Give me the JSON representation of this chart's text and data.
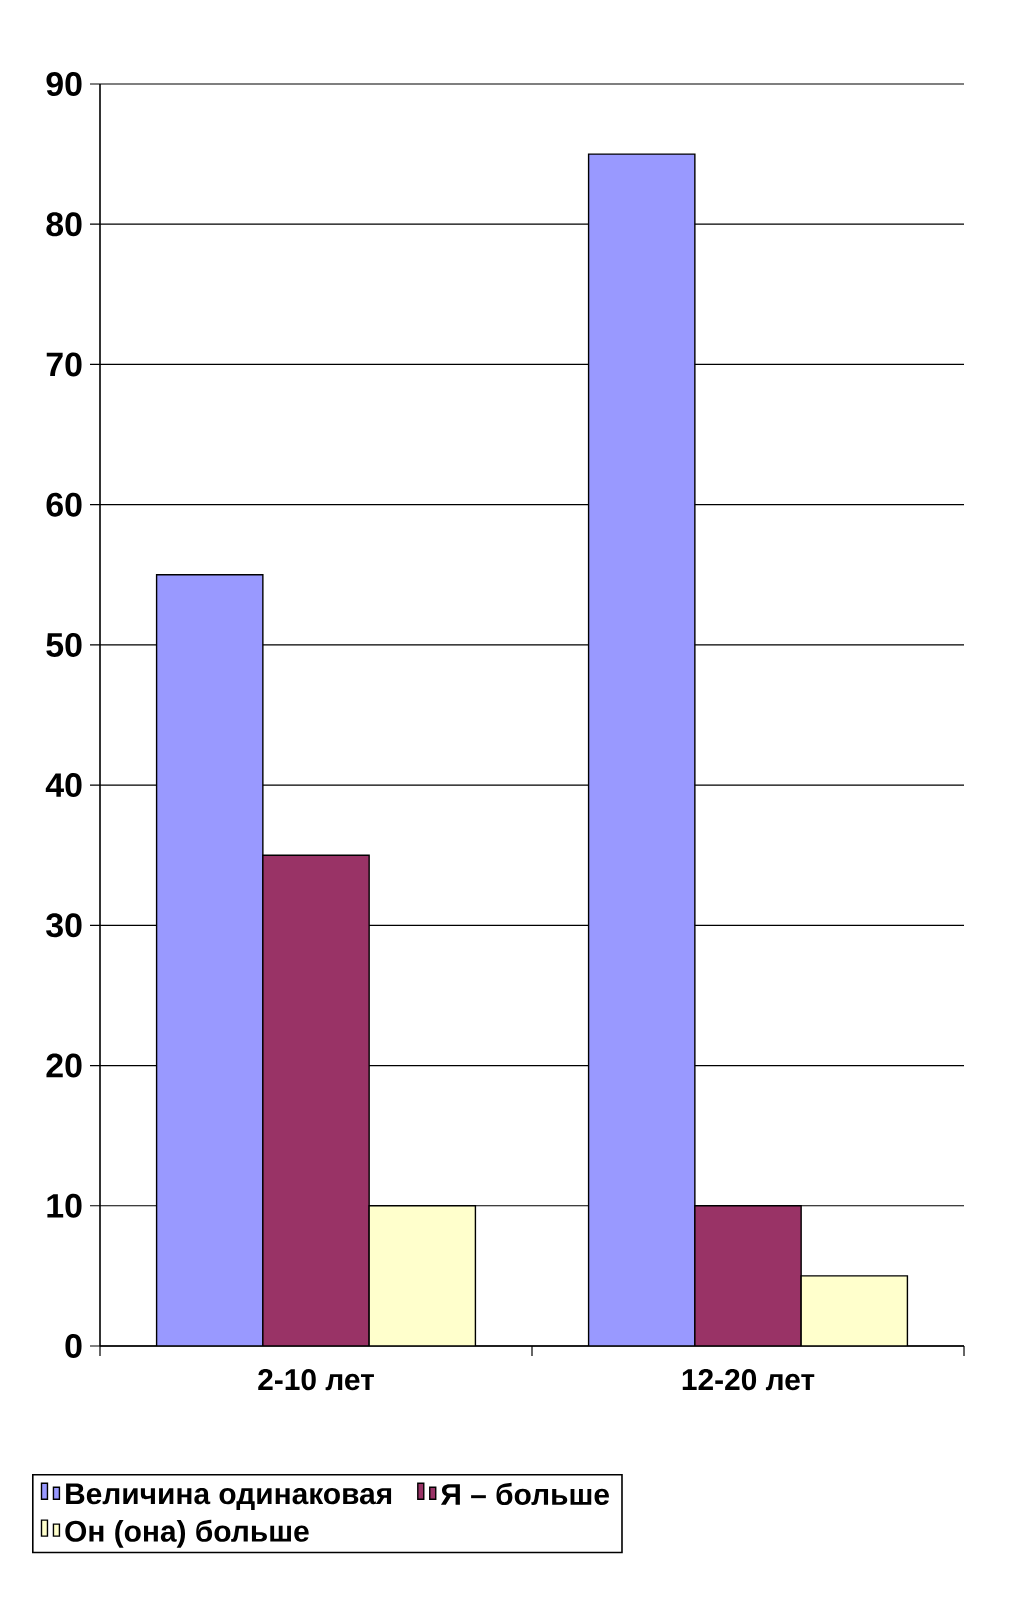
{
  "chart_data": {
    "type": "bar",
    "categories": [
      "2-10 лет",
      "12-20 лет"
    ],
    "series": [
      {
        "name": "Величина одинаковая",
        "color": "#9999ff",
        "values": [
          55,
          85
        ]
      },
      {
        "name": "Я – больше",
        "color": "#993366",
        "values": [
          35,
          10
        ]
      },
      {
        "name": "Он (она) больше",
        "color": "#ffffcc",
        "values": [
          10,
          5
        ]
      }
    ],
    "ylim": [
      0,
      90
    ],
    "yticks": [
      0,
      10,
      20,
      30,
      40,
      50,
      60,
      70,
      80,
      90
    ],
    "grid": "y",
    "legend": "bottom"
  }
}
